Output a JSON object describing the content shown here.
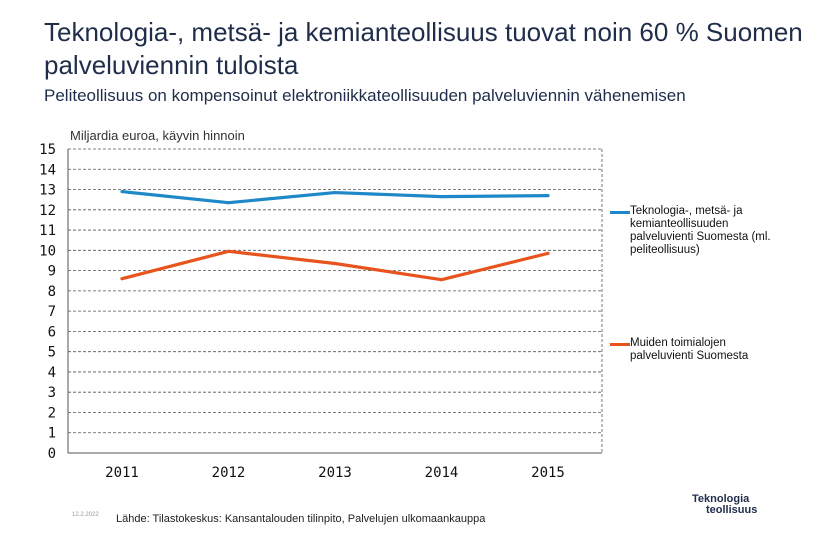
{
  "header": {
    "title": "Teknologia-, metsä- ja kemianteollisuus tuovat noin 60 % Suomen palveluviennin tuloista",
    "subtitle": "Peliteollisuus on kompensoinut elektroniikkateollisuuden palveluviennin vähenemisen"
  },
  "chart_data": {
    "type": "line",
    "title": "",
    "ylabel": "Miljardia euroa, käyvin hinnoin",
    "xlabel": "",
    "categories": [
      "2011",
      "2012",
      "2013",
      "2014",
      "2015"
    ],
    "ylim": [
      0,
      15
    ],
    "yticks": [
      "0",
      "1",
      "2",
      "3",
      "4",
      "5",
      "6",
      "7",
      "8",
      "9",
      "10",
      "11",
      "12",
      "13",
      "14",
      "15"
    ],
    "grid": true,
    "legend_position": "right",
    "series": [
      {
        "name": "Teknologia-, metsä- ja kemianteollisuuden palveluvienti Suomesta (ml. peliteollisuus)",
        "color": "#1e88c8",
        "values": [
          12.9,
          12.35,
          12.85,
          12.65,
          12.7
        ]
      },
      {
        "name": "Muiden toimialojen palveluvienti Suomesta",
        "color": "#e8541e",
        "values": [
          8.6,
          9.95,
          9.35,
          8.55,
          9.85
        ]
      }
    ]
  },
  "footer": {
    "date": "12.2.2022",
    "source": "Lähde: Tilastokeskus: Kansantalouden tilinpito, Palvelujen ulkomaankauppa",
    "logo_line1": "Teknologia",
    "logo_line2": "teollisuus"
  }
}
